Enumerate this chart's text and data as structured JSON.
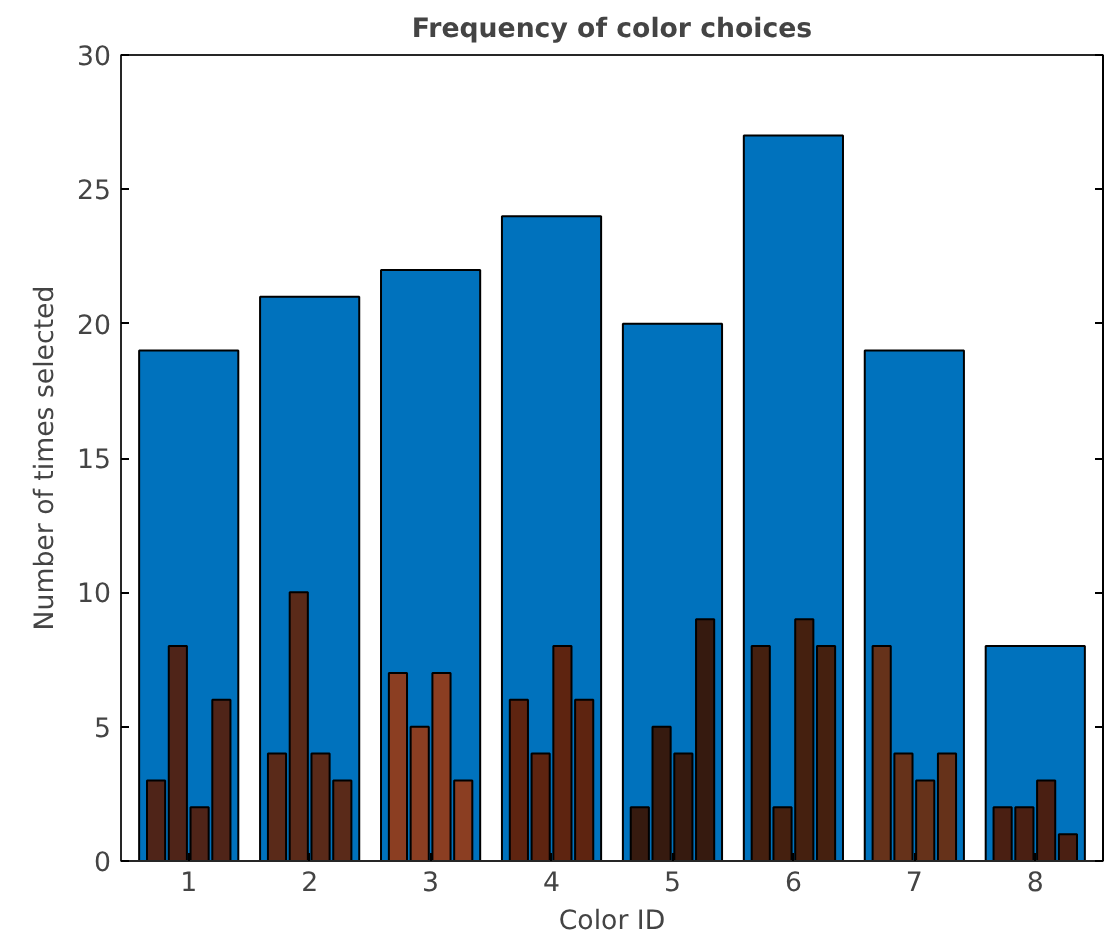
{
  "chart_data": {
    "type": "bar",
    "title": "Frequency of color choices",
    "xlabel": "Color ID",
    "ylabel": "Number of times selected",
    "categories": [
      "1",
      "2",
      "3",
      "4",
      "5",
      "6",
      "7",
      "8"
    ],
    "ylim": [
      0,
      30
    ],
    "yticks": [
      0,
      5,
      10,
      15,
      20,
      25,
      30
    ],
    "grid": false,
    "series": [
      {
        "color": "#0072bd",
        "values": [
          19,
          21,
          22,
          24,
          20,
          27,
          19,
          8
        ]
      },
      {
        "color": "#4f2418",
        "colors": [
          "#4f2418",
          "#5a2a19",
          "#8b3e22",
          "#5e2410",
          "#361a0f",
          "#45200f",
          "#66321a",
          "#4a1f12"
        ],
        "values": [
          3,
          4,
          7,
          6,
          2,
          8,
          8,
          2
        ]
      },
      {
        "color": "#4f2418",
        "colors": [
          "#4f2418",
          "#5a2a19",
          "#8b3e22",
          "#5e2410",
          "#361a0f",
          "#45200f",
          "#66321a",
          "#4a1f12"
        ],
        "values": [
          8,
          10,
          5,
          4,
          5,
          2,
          4,
          2
        ]
      },
      {
        "color": "#4f2418",
        "colors": [
          "#4f2418",
          "#5a2a19",
          "#8b3e22",
          "#5e2410",
          "#361a0f",
          "#45200f",
          "#66321a",
          "#4a1f12"
        ],
        "values": [
          2,
          4,
          7,
          8,
          4,
          9,
          3,
          3
        ]
      },
      {
        "color": "#4f2418",
        "colors": [
          "#4f2418",
          "#5a2a19",
          "#8b3e22",
          "#5e2410",
          "#361a0f",
          "#45200f",
          "#66321a",
          "#4a1f12"
        ],
        "values": [
          6,
          3,
          3,
          6,
          9,
          8,
          4,
          1
        ]
      }
    ]
  }
}
